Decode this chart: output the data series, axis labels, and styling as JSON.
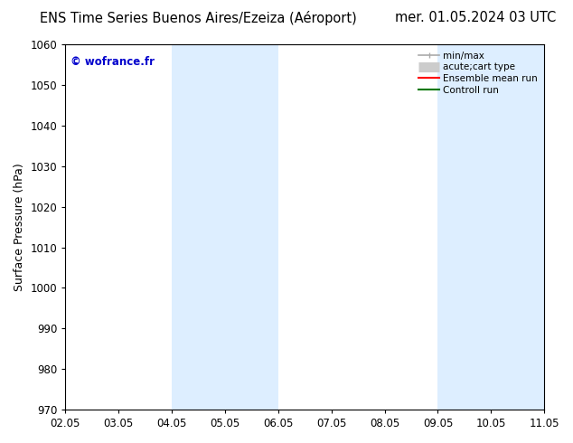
{
  "title_left": "ENS Time Series Buenos Aires/Ezeiza (Aéroport)",
  "title_right": "mer. 01.05.2024 03 UTC",
  "ylabel": "Surface Pressure (hPa)",
  "ylim": [
    970,
    1060
  ],
  "yticks": [
    970,
    980,
    990,
    1000,
    1010,
    1020,
    1030,
    1040,
    1050,
    1060
  ],
  "xtick_labels": [
    "02.05",
    "03.05",
    "04.05",
    "05.05",
    "06.05",
    "07.05",
    "08.05",
    "09.05",
    "10.05",
    "11.05"
  ],
  "watermark": "© wofrance.fr",
  "watermark_color": "#0000cc",
  "shaded_regions": [
    {
      "xstart": 2,
      "xend": 4
    },
    {
      "xstart": 7,
      "xend": 9
    }
  ],
  "shaded_color": "#ddeeff",
  "background_color": "#ffffff",
  "legend_entries": [
    {
      "label": "min/max",
      "color": "#aaaaaa",
      "lw": 1.2,
      "style": "minmax"
    },
    {
      "label": "acute;cart type",
      "color": "#cccccc",
      "lw": 8,
      "style": "thick"
    },
    {
      "label": "Ensemble mean run",
      "color": "#ff0000",
      "lw": 1.5,
      "style": "line"
    },
    {
      "label": "Controll run",
      "color": "#007700",
      "lw": 1.5,
      "style": "line"
    }
  ],
  "title_fontsize": 10.5,
  "tick_fontsize": 8.5,
  "ylabel_fontsize": 9
}
